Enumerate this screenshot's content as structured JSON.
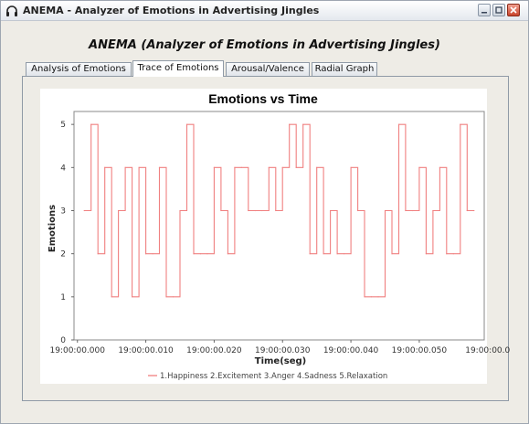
{
  "window": {
    "title": "ANEMA - Analyzer of Emotions in Advertising Jingles",
    "icon": "headphones-icon",
    "controls": [
      "minimize-icon",
      "maximize-icon",
      "close-icon"
    ]
  },
  "heading": "ANEMA (Analyzer of Emotions in Advertising Jingles)",
  "tabs": [
    {
      "label": "Analysis of Emotions",
      "active": false
    },
    {
      "label": "Trace of Emotions",
      "active": true
    },
    {
      "label": "Arousal/Valence",
      "active": false
    },
    {
      "label": "Radial Graph",
      "active": false
    }
  ],
  "colors": {
    "series": "#f08080",
    "grid": "#c0c0c0",
    "plot_border": "#888888"
  },
  "chart_data": {
    "type": "line",
    "step": true,
    "title": "Emotions vs Time",
    "xlabel": "Time(seg)",
    "ylabel": "Emotions",
    "xlim": [
      -0.0005,
      0.0595
    ],
    "ylim": [
      0,
      5.3
    ],
    "yticks": [
      0,
      1,
      2,
      3,
      4,
      5
    ],
    "xticks": [
      {
        "v": 0.0,
        "label": "19:00:00.000"
      },
      {
        "v": 0.01,
        "label": "19:00:00.010"
      },
      {
        "v": 0.02,
        "label": "19:00:00.020"
      },
      {
        "v": 0.03,
        "label": "19:00:00.030"
      },
      {
        "v": 0.04,
        "label": "19:00:00.040"
      },
      {
        "v": 0.05,
        "label": "19:00:00.050"
      },
      {
        "v": 0.06,
        "label": "19:00:00.0"
      }
    ],
    "grid": true,
    "legend_position": "bottom",
    "series": [
      {
        "name": "1.Happiness 2.Excitement 3.Anger 4.Sadness 5.Relaxation",
        "x": [
          0.001,
          0.002,
          0.003,
          0.004,
          0.005,
          0.006,
          0.007,
          0.008,
          0.009,
          0.01,
          0.011,
          0.012,
          0.013,
          0.014,
          0.015,
          0.016,
          0.017,
          0.018,
          0.019,
          0.02,
          0.021,
          0.022,
          0.023,
          0.024,
          0.025,
          0.026,
          0.027,
          0.028,
          0.029,
          0.03,
          0.031,
          0.032,
          0.033,
          0.034,
          0.035,
          0.036,
          0.037,
          0.038,
          0.039,
          0.04,
          0.041,
          0.042,
          0.043,
          0.044,
          0.045,
          0.046,
          0.047,
          0.048,
          0.049,
          0.05,
          0.051,
          0.052,
          0.053,
          0.054,
          0.055,
          0.056,
          0.057,
          0.058
        ],
        "values": [
          3,
          5,
          2,
          4,
          1,
          3,
          4,
          1,
          4,
          2,
          2,
          4,
          1,
          1,
          3,
          5,
          2,
          2,
          2,
          4,
          3,
          2,
          4,
          4,
          3,
          3,
          3,
          4,
          3,
          4,
          5,
          4,
          5,
          2,
          4,
          2,
          3,
          2,
          2,
          4,
          3,
          1,
          1,
          1,
          3,
          2,
          5,
          3,
          3,
          4,
          2,
          3,
          4,
          2,
          2,
          5,
          3,
          3
        ]
      }
    ]
  }
}
